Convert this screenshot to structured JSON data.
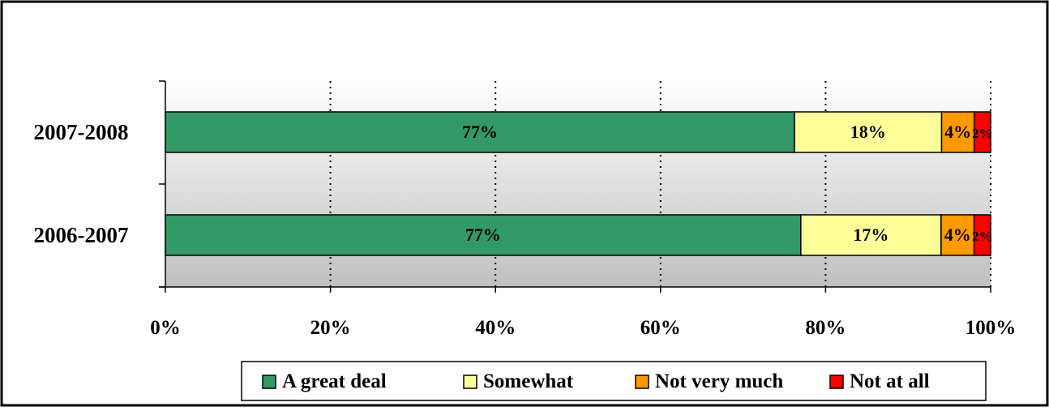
{
  "chart_data": {
    "type": "bar",
    "orientation": "horizontal",
    "stacked": true,
    "percent_stacked": true,
    "categories": [
      "2007-2008",
      "2006-2007"
    ],
    "series": [
      {
        "name": "A great deal",
        "values": [
          77,
          77
        ],
        "labels": [
          "77%",
          "77%"
        ],
        "color": "#339966"
      },
      {
        "name": "Somewhat",
        "values": [
          18,
          17
        ],
        "labels": [
          "18%",
          "17%"
        ],
        "color": "#FFFF99"
      },
      {
        "name": "Not very much",
        "values": [
          4,
          4
        ],
        "labels": [
          "4%",
          "4%"
        ],
        "color": "#FF9900"
      },
      {
        "name": "Not at all",
        "values": [
          2,
          2
        ],
        "labels": [
          "2%",
          "2%"
        ],
        "color": "#FF0000"
      }
    ],
    "xlim": [
      0,
      100
    ],
    "xticks": [
      "0%",
      "20%",
      "40%",
      "60%",
      "80%",
      "100%"
    ],
    "grid": "vertical dotted",
    "legend_position": "bottom",
    "plot_background": "gradient white to gray"
  }
}
